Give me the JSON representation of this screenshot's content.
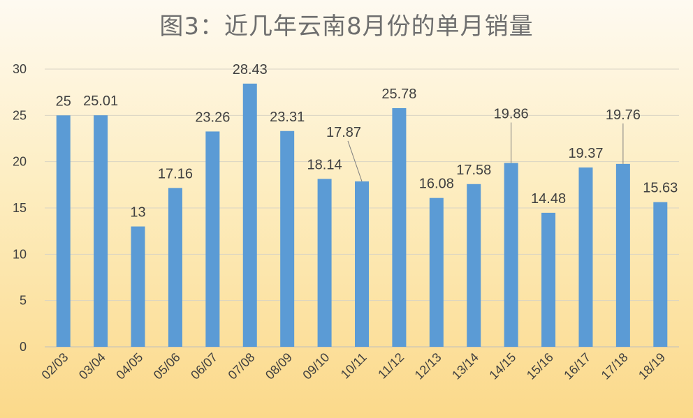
{
  "chart_data": {
    "type": "bar",
    "title": "图3：近几年云南8月份的单月销量",
    "categories": [
      "02/03",
      "03/04",
      "04/05",
      "05/06",
      "06/07",
      "07/08",
      "08/09",
      "09/10",
      "10/11",
      "11/12",
      "12/13",
      "13/14",
      "14/15",
      "15/16",
      "16/17",
      "17/18",
      "18/19"
    ],
    "series": [
      {
        "values": [
          25,
          25.01,
          13,
          17.16,
          23.26,
          28.43,
          23.31,
          18.14,
          17.87,
          25.78,
          16.08,
          17.58,
          19.86,
          14.48,
          19.37,
          19.76,
          15.63
        ]
      }
    ],
    "data_labels": [
      "25",
      "25.01",
      "13",
      "17.16",
      "23.26",
      "28.43",
      "23.31",
      "18.14",
      "17.87",
      "25.78",
      "16.08",
      "17.58",
      "19.86",
      "14.48",
      "19.37",
      "19.76",
      "15.63"
    ],
    "y_ticks": [
      "0",
      "5",
      "10",
      "15",
      "20",
      "25",
      "30"
    ],
    "ylim": [
      0,
      30
    ],
    "grid": true,
    "xlabel": "",
    "ylabel": "",
    "bar_color": "#5b9bd5",
    "label_color": "#404040",
    "title_color": "#6e6e6e"
  }
}
